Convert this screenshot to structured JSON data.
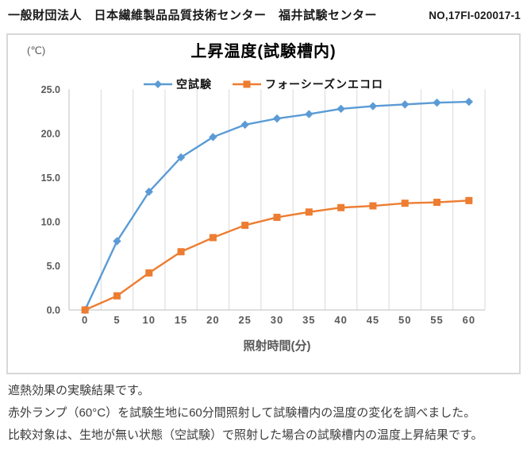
{
  "header": {
    "org": "一般財団法人　日本繊維製品品質技術センター　福井試験センター",
    "report_no": "NO,17FI-020017-1"
  },
  "chart": {
    "unit_label": "(℃)",
    "title": "上昇温度(試験槽内)"
  },
  "chart_data": {
    "type": "line",
    "title": "上昇温度(試験槽内)",
    "x": [
      0,
      5,
      10,
      15,
      20,
      25,
      30,
      35,
      40,
      45,
      50,
      55,
      60
    ],
    "xlabel": "照射時間(分)",
    "ylabel": "(℃)",
    "ylim": [
      0,
      25
    ],
    "ytick_step": 5,
    "ytick_format_decimals": 1,
    "grid": "vertical-only",
    "legend_position": "top-center",
    "series": [
      {
        "name": "空試験",
        "marker": "diamond",
        "color": "#5b9bd5",
        "values": [
          0.0,
          7.8,
          13.4,
          17.3,
          19.6,
          21.0,
          21.7,
          22.2,
          22.8,
          23.1,
          23.3,
          23.5,
          23.6
        ]
      },
      {
        "name": "フォーシーズンエコロ",
        "marker": "square",
        "color": "#ed7d31",
        "values": [
          0.0,
          1.6,
          4.2,
          6.6,
          8.2,
          9.6,
          10.5,
          11.1,
          11.6,
          11.8,
          12.1,
          12.2,
          12.4
        ]
      }
    ],
    "style": {
      "gridline_color": "#d9d9d9",
      "axis_line_color": "#bfbfbf",
      "tick_label_color": "#595959",
      "axis_title_color": "#595959"
    }
  },
  "notes": {
    "lines": [
      "遮熱効果の実験結果です。",
      "赤外ランプ（60°C）を試験生地に60分間照射して試験槽内の温度の変化を調べました。",
      "比較対象は、生地が無い状態（空試験）で照射した場合の試験槽内の温度上昇結果です。"
    ]
  }
}
